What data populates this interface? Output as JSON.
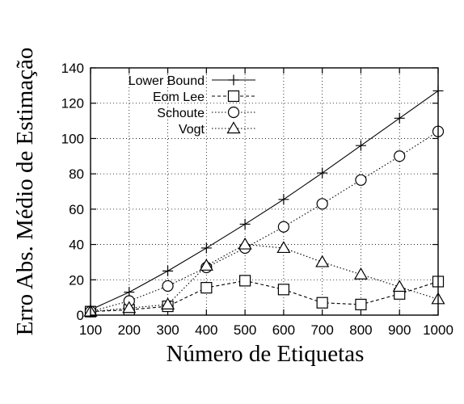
{
  "chart_data": {
    "type": "line",
    "xlabel": "Número de Etiquetas",
    "ylabel": "Erro Abs. Médio de Estimação",
    "x": [
      100,
      200,
      300,
      400,
      500,
      600,
      700,
      800,
      900,
      1000
    ],
    "xlim": [
      100,
      1000
    ],
    "ylim": [
      0,
      140
    ],
    "yticks": [
      0,
      20,
      40,
      60,
      80,
      100,
      120,
      140
    ],
    "xticks": [
      100,
      200,
      300,
      400,
      500,
      600,
      700,
      800,
      900,
      1000
    ],
    "grid": true,
    "legend_position": "top-left",
    "series": [
      {
        "name": "Lower Bound",
        "marker": "plus",
        "line": "solid",
        "values": [
          3,
          13,
          25,
          38,
          51.5,
          65.5,
          80.5,
          96,
          111.5,
          127
        ]
      },
      {
        "name": "Eom Lee",
        "marker": "square",
        "line": "dashed",
        "values": [
          2,
          3,
          5,
          15.5,
          19.5,
          14.5,
          7,
          6,
          12,
          19
        ]
      },
      {
        "name": "Schoute",
        "marker": "circle",
        "line": "dotted",
        "values": [
          2,
          8,
          16.5,
          27,
          38,
          50,
          63,
          76.5,
          90,
          104
        ]
      },
      {
        "name": "Vogt",
        "marker": "triangle",
        "line": "dotted",
        "values": [
          2,
          4,
          6,
          28,
          40,
          38,
          30,
          23,
          16,
          9
        ]
      }
    ]
  }
}
